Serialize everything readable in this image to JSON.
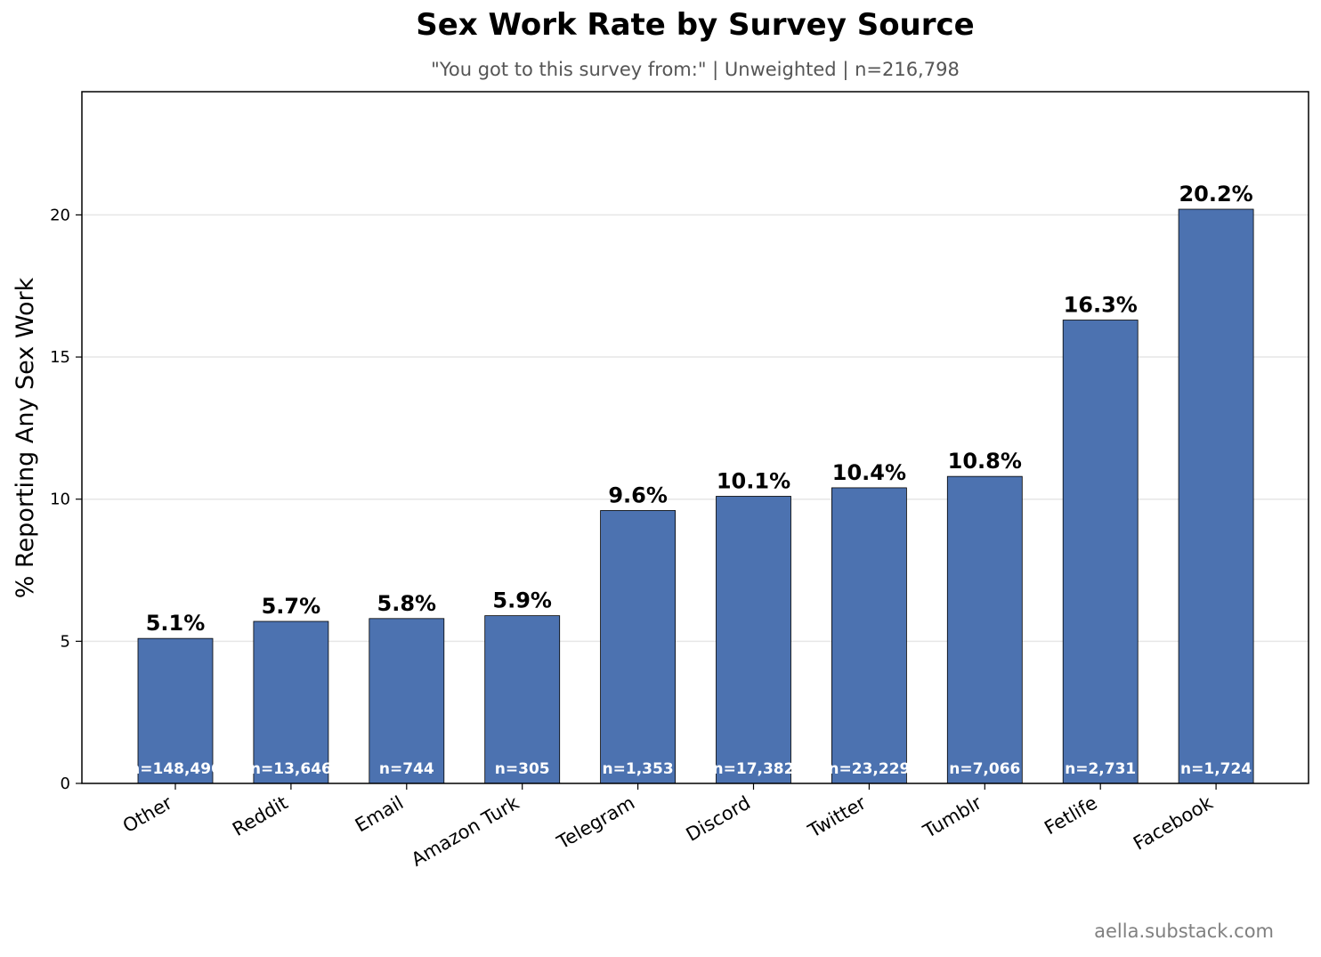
{
  "chart_data": {
    "type": "bar",
    "title": "Sex Work Rate by Survey Source",
    "subtitle": "\"You got to this survey from:\"  |  Unweighted  |  n=216,798",
    "xlabel": "",
    "ylabel": "% Reporting Any Sex Work",
    "ylim": [
      0,
      24.2
    ],
    "yticks": [
      0,
      5,
      10,
      15,
      20
    ],
    "grid": "horizontal",
    "categories": [
      "Other",
      "Reddit",
      "Email",
      "Amazon Turk",
      "Telegram",
      "Discord",
      "Twitter",
      "Tumblr",
      "Fetlife",
      "Facebook"
    ],
    "values": [
      5.1,
      5.7,
      5.8,
      5.9,
      9.6,
      10.1,
      10.4,
      10.8,
      16.3,
      20.2
    ],
    "value_labels": [
      "5.1%",
      "5.7%",
      "5.8%",
      "5.9%",
      "9.6%",
      "10.1%",
      "10.4%",
      "10.8%",
      "16.3%",
      "20.2%"
    ],
    "n_labels": [
      "n=148,496",
      "n=13,646",
      "n=744",
      "n=305",
      "n=1,353",
      "n=17,382",
      "n=23,229",
      "n=7,066",
      "n=2,731",
      "n=1,724"
    ],
    "bar_color": "#4c72b0"
  },
  "credit": "aella.substack.com"
}
